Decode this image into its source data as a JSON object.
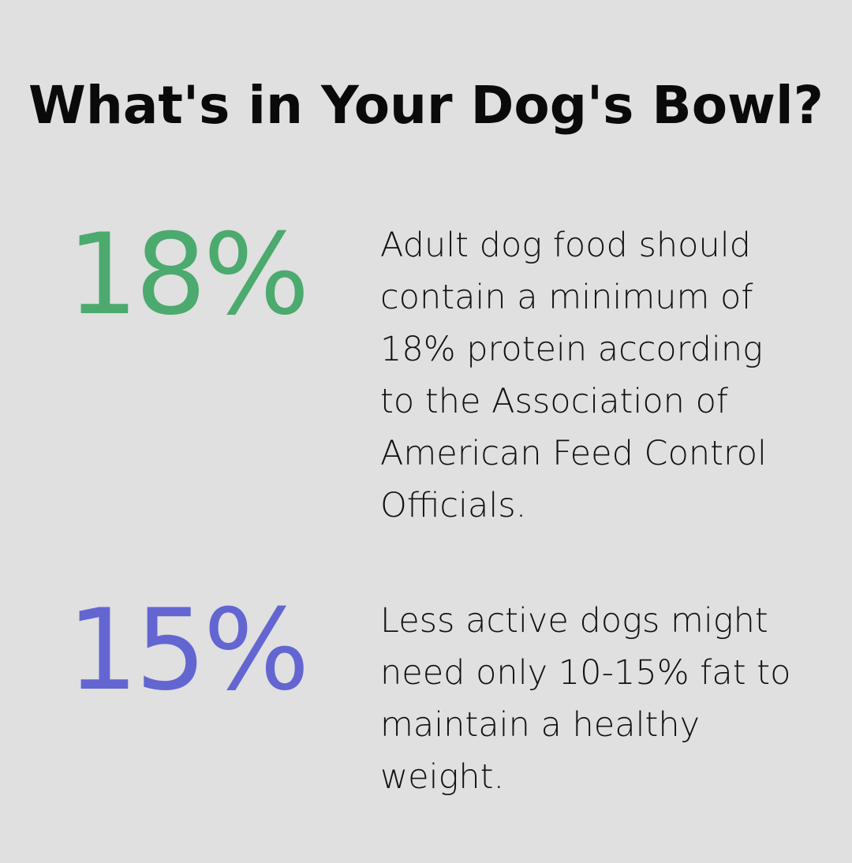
{
  "title": "What's in Your Dog's Bowl?",
  "stats": [
    {
      "value": "18%",
      "color": "#4caa6e",
      "text": "Adult dog food should contain a minimum of 18% protein according to the Association of American Feed Control Officials."
    },
    {
      "value": "15%",
      "color": "#6366d1",
      "text": "Less active dogs might need only 10-15% fat to maintain a healthy weight."
    }
  ]
}
